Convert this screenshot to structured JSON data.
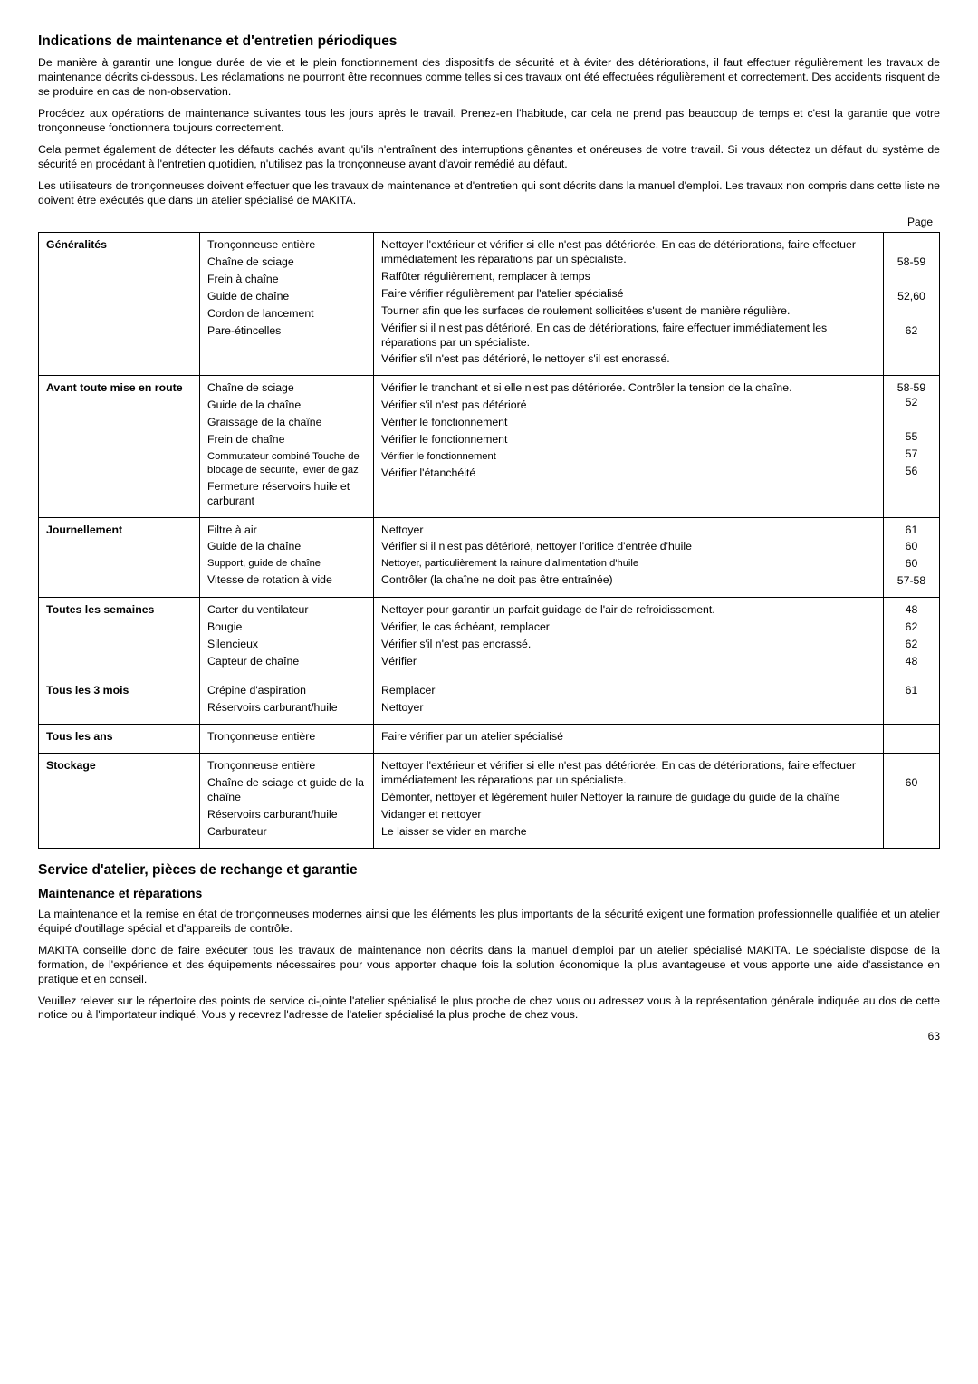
{
  "h_indications": "Indications de maintenance et d'entretien périodiques",
  "p1": "De manière à garantir une longue durée de vie et le plein fonctionnement des dispositifs de sécurité et à éviter des détériorations, il faut effectuer régulièrement les travaux de maintenance décrits ci-dessous. Les réclamations ne pourront être reconnues comme telles si ces travaux ont été effectuées régulièrement et correctement. Des accidents risquent de se produire en cas de non-observation.",
  "p2": "Procédez aux opérations de maintenance suivantes tous les jours après le travail. Prenez-en l'habitude, car cela ne prend pas beaucoup de temps et c'est la garantie que votre tronçonneuse fonctionnera toujours correctement.",
  "p3": "Cela permet également de détecter les défauts cachés avant qu'ils n'entraînent des interruptions gênantes et onéreuses de votre travail. Si vous détectez un défaut du système de sécurité en procédant à l'entretien quotidien, n'utilisez pas la tronçonneuse avant d'avoir remédié au défaut.",
  "p4": "Les utilisateurs de tronçonneuses doivent effectuer que les travaux de maintenance et d'entretien qui sont décrits dans la manuel d'emploi. Les travaux non compris dans cette liste ne doivent être exécutés que dans un atelier spécialisé de MAKITA.",
  "page_label": "Page",
  "rows": [
    {
      "head": "Généralités",
      "lines": [
        {
          "item": "Tronçonneuse entière",
          "desc": "Nettoyer l'extérieur et vérifier si elle n'est pas détériorée. En cas de détériorations, faire effectuer immédiatement les réparations par un spécialiste.",
          "pg": ""
        },
        {
          "item": "Chaîne de sciage",
          "desc": "Raffûter régulièrement, remplacer  à temps",
          "pg": "58-59"
        },
        {
          "item": "Frein à chaîne",
          "desc": "Faire vérifier régulièrement par l'atelier spécialisé",
          "pg": ""
        },
        {
          "item": "Guide de chaîne",
          "desc": "Tourner afin que les surfaces de roulement sollicitées s'usent de manière régulière.",
          "pg": "52,60"
        },
        {
          "item": "Cordon de lancement",
          "desc": "Vérifier si il n'est pas détérioré. En cas de détériorations, faire effectuer immédiatement les réparations par un spécialiste.",
          "pg": ""
        },
        {
          "item": "Pare-étincelles",
          "desc": "Vérifier s'il n'est pas détérioré, le nettoyer s'il est encrassé.",
          "pg": "62"
        }
      ]
    },
    {
      "head": "Avant toute mise en route",
      "lines": [
        {
          "item": "Chaîne de sciage",
          "desc": "Vérifier le tranchant et si elle n'est pas détériorée. Contrôler la tension de la chaîne.",
          "pg": "58-59 52"
        },
        {
          "item": "Guide de la chaîne",
          "desc": "Vérifier s'il n'est pas détérioré",
          "pg": ""
        },
        {
          "item": "Graissage de la chaîne",
          "desc": "Vérifier le fonctionnement",
          "pg": "55"
        },
        {
          "item": "Frein de chaîne",
          "desc": "Vérifier le fonctionnement",
          "pg": "57"
        },
        {
          "item": "Commutateur combiné Touche de blocage de sécurité, levier de gaz",
          "desc": "Vérifier le fonctionnement",
          "pg": "56",
          "small": true
        },
        {
          "item": "Fermeture réservoirs huile et carburant",
          "desc": "Vérifier l'étanchéité",
          "pg": ""
        }
      ]
    },
    {
      "head": "Journellement",
      "lines": [
        {
          "item": "Filtre à air",
          "desc": "Nettoyer",
          "pg": "61"
        },
        {
          "item": "Guide de la chaîne",
          "desc": "Vérifier si il n'est pas détérioré, nettoyer l'orifice d'entrée d'huile",
          "pg": "60"
        },
        {
          "item": "Support, guide de chaîne",
          "desc": "Nettoyer, particulièrement la rainure d'alimentation d'huile",
          "pg": "60",
          "small": true
        },
        {
          "item": "Vitesse de rotation à vide",
          "desc": "Contrôler (la chaîne ne doit pas être entraînée)",
          "pg": "57-58"
        }
      ]
    },
    {
      "head": "Toutes les semaines",
      "lines": [
        {
          "item": "Carter du ventilateur",
          "desc": "Nettoyer pour garantir un parfait guidage de l'air de refroidissement.",
          "pg": "48"
        },
        {
          "item": "Bougie",
          "desc": "Vérifier, le cas échéant, remplacer",
          "pg": "62"
        },
        {
          "item": "Silencieux",
          "desc": "Vérifier s'il n'est pas  encrassé.",
          "pg": "62"
        },
        {
          "item": "Capteur de chaîne",
          "desc": "Vérifier",
          "pg": "48"
        }
      ]
    },
    {
      "head": "Tous les 3 mois",
      "lines": [
        {
          "item": "Crépine d'aspiration",
          "desc": "Remplacer",
          "pg": "61"
        },
        {
          "item": "Réservoirs carburant/huile",
          "desc": "Nettoyer",
          "pg": ""
        }
      ]
    },
    {
      "head": "Tous les ans",
      "lines": [
        {
          "item": "Tronçonneuse entière",
          "desc": "Faire vérifier par un atelier spécialisé",
          "pg": ""
        }
      ]
    },
    {
      "head": "Stockage",
      "lines": [
        {
          "item": "Tronçonneuse entière",
          "desc": "Nettoyer l'extérieur et vérifier si elle n'est pas détériorée. En cas de détériorations, faire effectuer immédiatement les réparations par un spécialiste.",
          "pg": ""
        },
        {
          "item": "Chaîne de sciage et guide de la chaîne",
          "desc": "Démonter, nettoyer et légèrement huiler Nettoyer la rainure de guidage du guide de la chaîne",
          "pg": "60"
        },
        {
          "item": "Réservoirs carburant/huile",
          "desc": "Vidanger et nettoyer",
          "pg": ""
        },
        {
          "item": "Carburateur",
          "desc": "Le laisser se vider en marche",
          "pg": ""
        }
      ]
    }
  ],
  "h_service": "Service d'atelier, pièces de rechange et garantie",
  "h_maint": "Maintenance et réparations",
  "p5": "La maintenance et la remise en état de tronçonneuses modernes ainsi que les éléments les plus importants de la sécurité exigent une formation professionnelle qualifiée et un atelier équipé d'outillage spécial et d'appareils de contrôle.",
  "p6": "MAKITA conseille donc de faire exécuter tous les travaux de maintenance non décrits dans la manuel d'emploi par un atelier spécialisé MAKITA. Le spécialiste dispose de la formation, de l'expérience et des équipements nécessaires pour vous apporter chaque fois la solution économique la plus avantageuse et vous apporte une aide d'assistance en pratique et en conseil.",
  "p7": "Veuillez relever sur le répertoire des points de service ci-jointe l'atelier spécialisé le plus proche de chez vous ou adressez vous à la représentation générale indiquée au dos de cette notice ou à l'importateur indiqué. Vous y recevrez l'adresse de l'atelier spécialisé la plus proche de chez vous.",
  "page_number": "63"
}
